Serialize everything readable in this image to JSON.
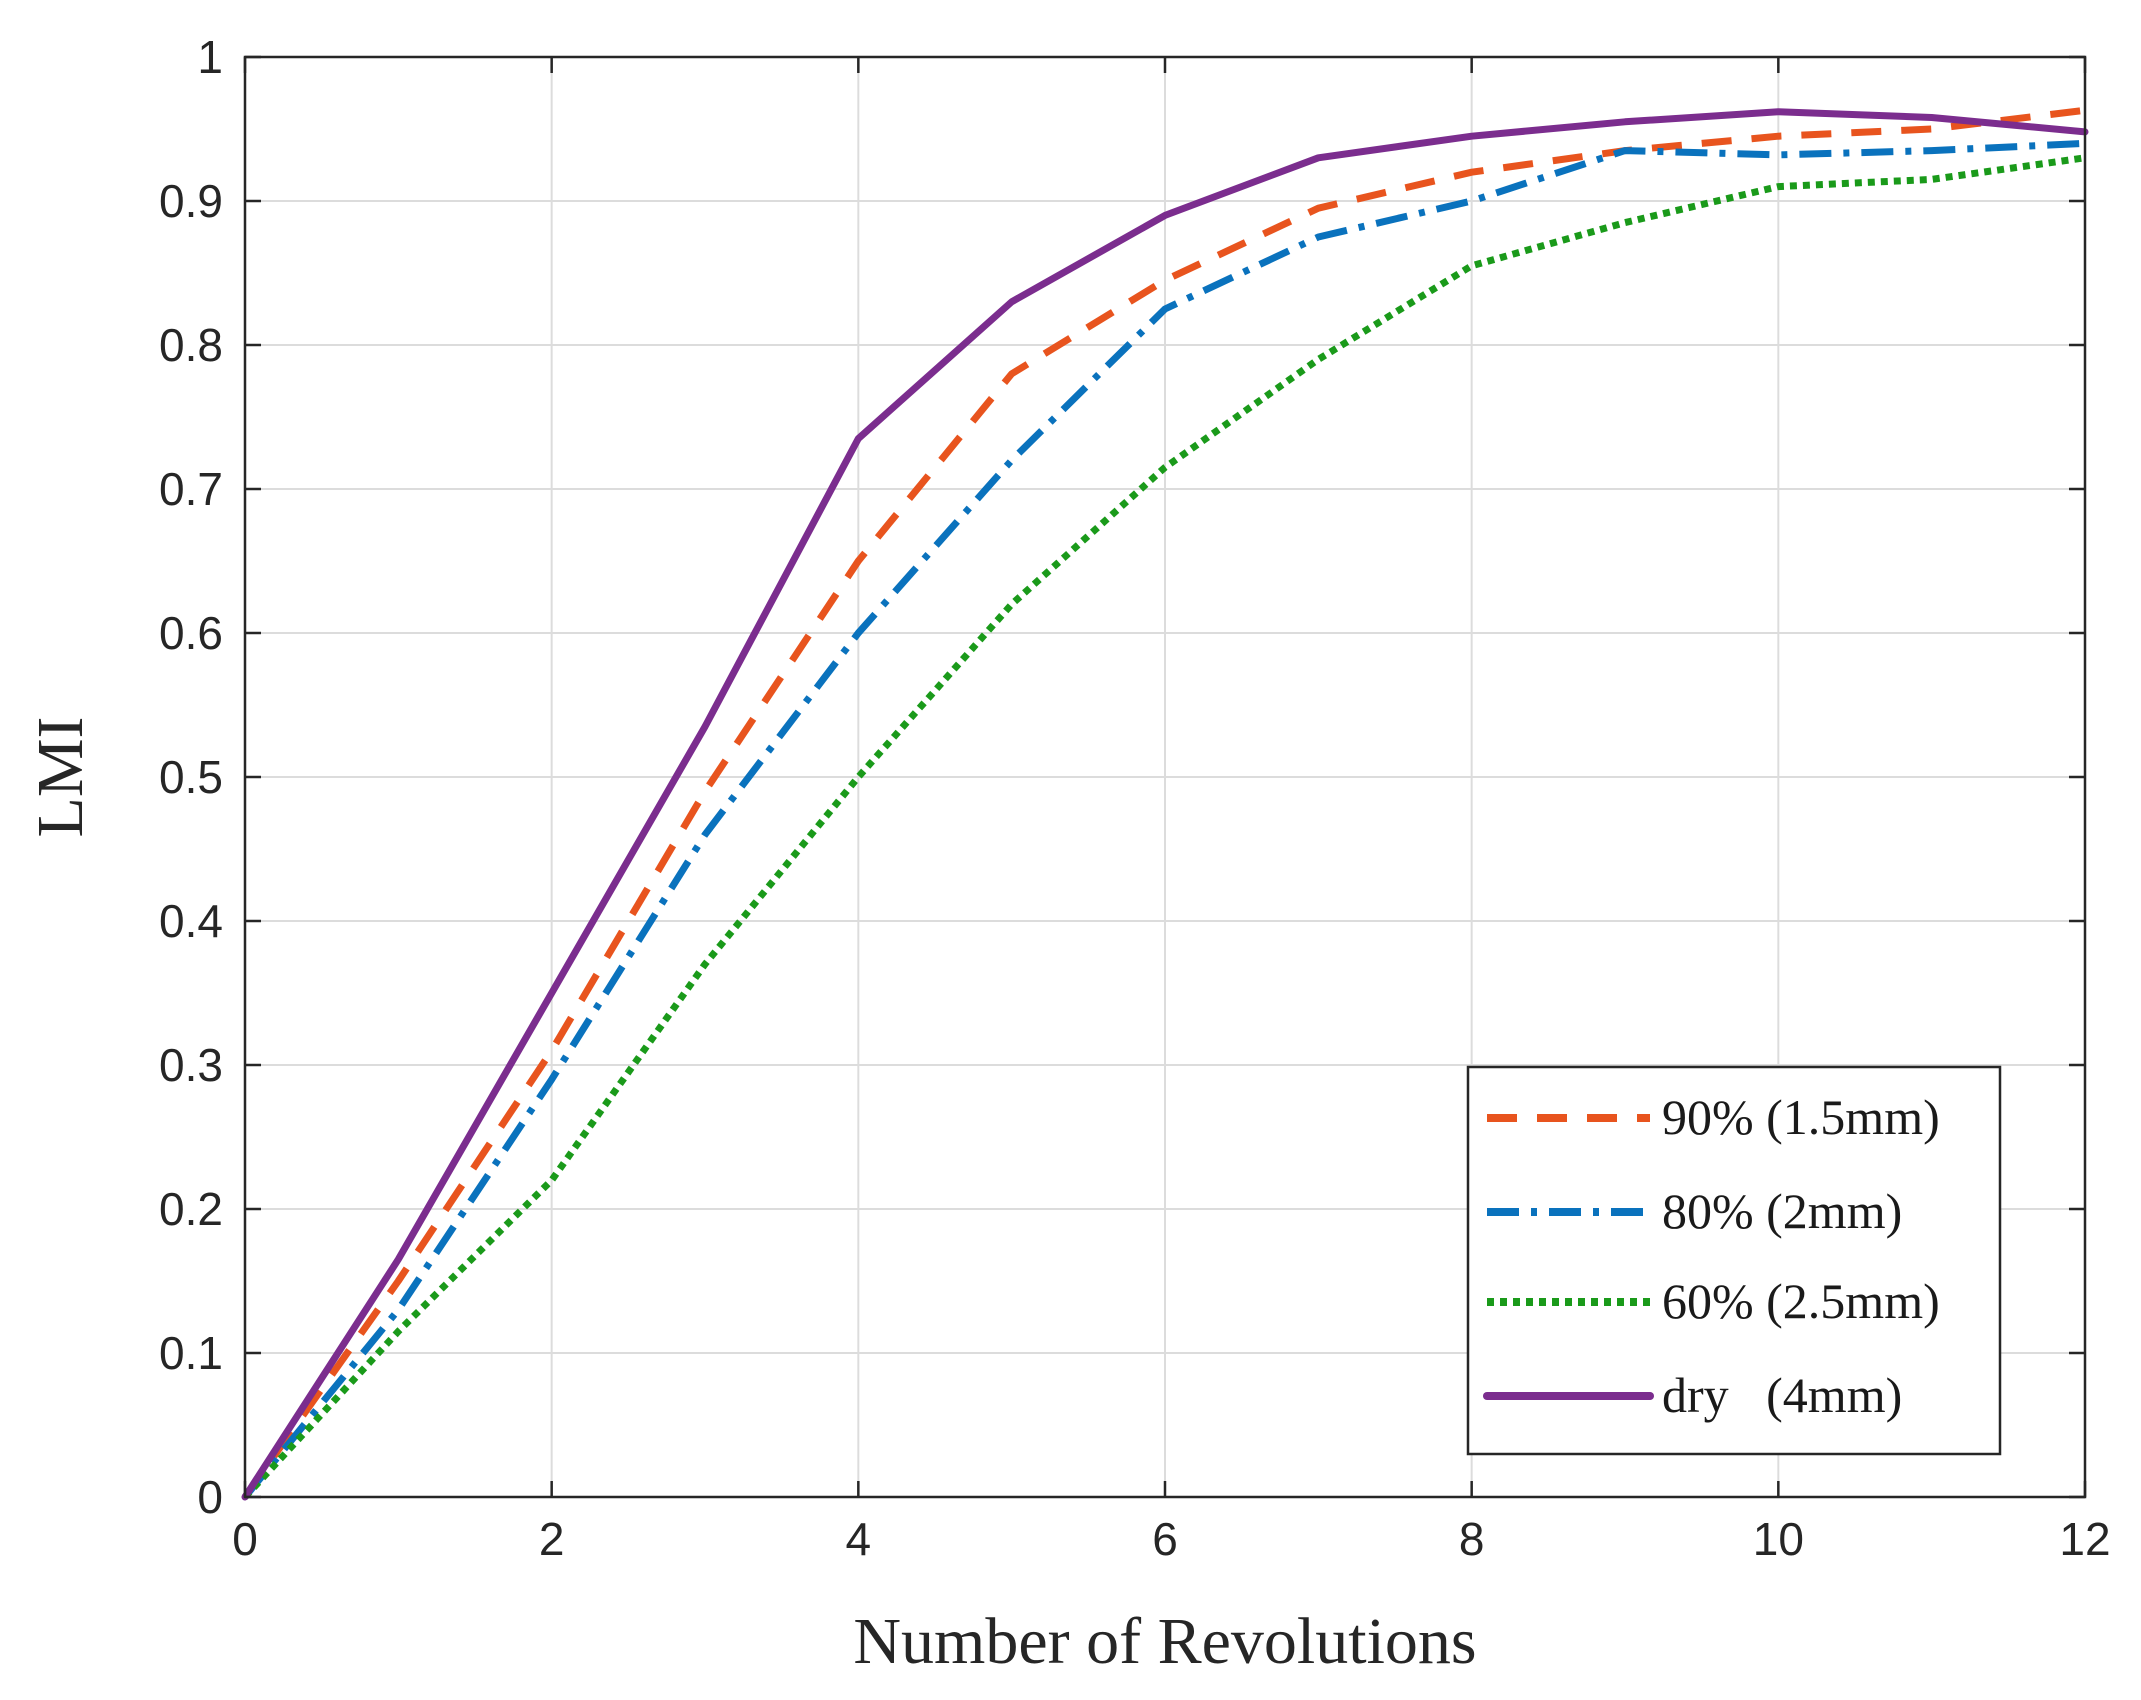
{
  "chart_data": {
    "type": "line",
    "title": "",
    "xlabel": "Number of Revolutions",
    "ylabel": "LMI",
    "xlim": [
      0,
      12
    ],
    "ylim": [
      0,
      1
    ],
    "xticks": [
      0,
      2,
      4,
      6,
      8,
      10,
      12
    ],
    "xtick_labels": [
      "0",
      "2",
      "4",
      "6",
      "8",
      "10",
      "12"
    ],
    "yticks": [
      0,
      0.1,
      0.2,
      0.3,
      0.4,
      0.5,
      0.6,
      0.7,
      0.8,
      0.9,
      1
    ],
    "ytick_labels": [
      "0",
      "0.1",
      "0.2",
      "0.3",
      "0.4",
      "0.5",
      "0.6",
      "0.7",
      "0.8",
      "0.9",
      "1"
    ],
    "grid": true,
    "legend_position": "bottom-right",
    "x": [
      0,
      1,
      2,
      3,
      4,
      5,
      6,
      7,
      8,
      9,
      10,
      11,
      12
    ],
    "series": [
      {
        "name": "90% (1.5mm)",
        "label": "90% (1.5mm)",
        "color": "#e8541e",
        "style": "dashed",
        "values": [
          0,
          0.15,
          0.31,
          0.49,
          0.65,
          0.78,
          0.845,
          0.895,
          0.92,
          0.935,
          0.945,
          0.95,
          0.963
        ]
      },
      {
        "name": "80% (2mm)",
        "label": "80% (2mm)",
        "color": "#0a72bd",
        "style": "dashdot",
        "values": [
          0,
          0.13,
          0.29,
          0.46,
          0.6,
          0.72,
          0.825,
          0.875,
          0.9,
          0.935,
          0.932,
          0.935,
          0.94
        ]
      },
      {
        "name": "60% (2.5mm)",
        "label": "60% (2.5mm)",
        "color": "#1a9a1a",
        "style": "dotted",
        "values": [
          0,
          0.115,
          0.22,
          0.37,
          0.5,
          0.62,
          0.715,
          0.79,
          0.855,
          0.885,
          0.91,
          0.915,
          0.93
        ]
      },
      {
        "name": "dry (4mm)",
        "label": "dry   (4mm)",
        "color": "#7b2d8e",
        "style": "solid",
        "values": [
          0,
          0.165,
          0.35,
          0.535,
          0.735,
          0.83,
          0.89,
          0.93,
          0.945,
          0.955,
          0.962,
          0.958,
          0.948
        ]
      }
    ]
  }
}
